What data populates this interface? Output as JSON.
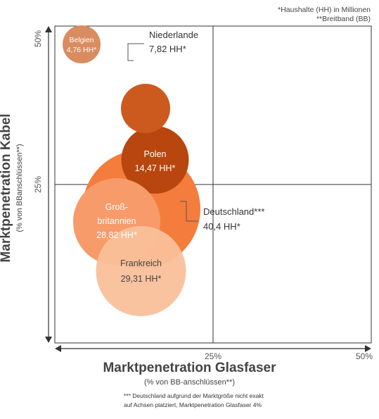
{
  "notes": {
    "line1": "*Haushalte (HH) in Millionen",
    "line2": "**Breitband (BB)"
  },
  "axes": {
    "ylabel": "Marktpenetration Kabel",
    "ylabel_sub": "(% von BBanschlüssen**)",
    "xlabel": "Marktpenetration Glasfaser",
    "xlabel_sub": "(% von BB-anschlüssen**)"
  },
  "footnote": {
    "line1": "*** Deutschland aufgrund der Marktgröße nicht exakt",
    "line2": "auf Achsen platziert, Marktpenetration Glasfaser 4%"
  },
  "chart_data": {
    "type": "scatter",
    "subtype": "bubble",
    "xlim": [
      0,
      50
    ],
    "ylim": [
      0,
      50
    ],
    "x_ticks": [
      "25%",
      "50%"
    ],
    "y_ticks": [
      "25%",
      "50%"
    ],
    "grid": "quadrant lines at 25%",
    "bubbles": [
      {
        "name": "Belgien",
        "label": "4,76 HH*",
        "x": 4,
        "y": 47,
        "size": 4.76,
        "color": "#d98c5f",
        "label_position": "inside"
      },
      {
        "name": "Niederlande",
        "label": "7,82 HH*",
        "x": 14,
        "y": 37,
        "size": 7.82,
        "color": "#cc5a1e",
        "label_position": "outside"
      },
      {
        "name": "Polen",
        "label": "14,47 HH*",
        "x": 15.5,
        "y": 29,
        "size": 14.47,
        "color": "#b8460e",
        "label_position": "inside"
      },
      {
        "name": "Deutschland***",
        "label": "40,4 HH*",
        "x": 4,
        "y": 21,
        "size": 40.4,
        "color": "#f47c3c",
        "label_position": "outside"
      },
      {
        "name": "Groß-",
        "name2": "britannien",
        "label": "28,82 HH*",
        "x": 4,
        "y": 17,
        "size": 28.82,
        "color": "#f79b6b",
        "label_position": "inside"
      },
      {
        "name": "Frankreich",
        "label": "29,31 HH*",
        "x": 13.5,
        "y": 11,
        "size": 29.31,
        "color": "#fac09a",
        "label_position": "inside"
      }
    ]
  }
}
